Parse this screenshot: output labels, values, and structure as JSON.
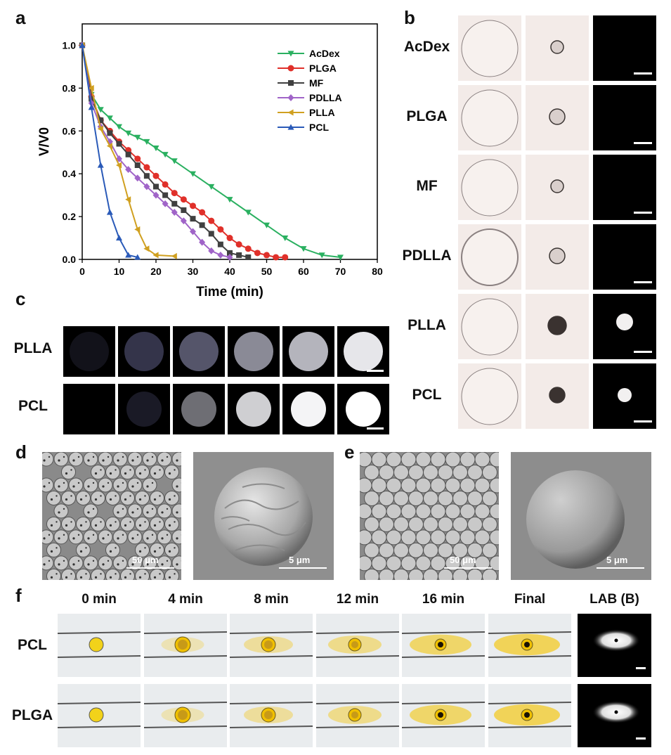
{
  "panel_labels": {
    "a": "a",
    "b": "b",
    "c": "c",
    "d": "d",
    "e": "e",
    "f": "f"
  },
  "chart_data": {
    "type": "line",
    "xlabel": "Time (min)",
    "ylabel": "V/V0",
    "xlim": [
      0,
      80
    ],
    "ylim": [
      0,
      1.1
    ],
    "xticks": [
      "0",
      "10",
      "20",
      "30",
      "40",
      "50",
      "60",
      "70",
      "80"
    ],
    "yticks": [
      "0.0",
      "0.2",
      "0.4",
      "0.6",
      "0.8",
      "1.0"
    ],
    "legend_position": "top-right",
    "series": [
      {
        "name": "AcDex",
        "color": "#2ab060",
        "marker": "triangle-down",
        "x": [
          0,
          2.5,
          5,
          7.5,
          10,
          12.5,
          15,
          17.5,
          20,
          22.5,
          25,
          30,
          35,
          40,
          45,
          50,
          55,
          60,
          65,
          70
        ],
        "y": [
          1.0,
          0.77,
          0.7,
          0.66,
          0.62,
          0.59,
          0.57,
          0.55,
          0.52,
          0.49,
          0.46,
          0.4,
          0.34,
          0.28,
          0.22,
          0.16,
          0.1,
          0.05,
          0.02,
          0.01
        ]
      },
      {
        "name": "PLGA",
        "color": "#e0302a",
        "marker": "circle",
        "x": [
          0,
          2.5,
          5,
          7.5,
          10,
          12.5,
          15,
          17.5,
          20,
          22.5,
          25,
          27.5,
          30,
          32.5,
          35,
          37.5,
          40,
          42.5,
          45,
          47.5,
          50,
          52.5,
          55
        ],
        "y": [
          1.0,
          0.76,
          0.65,
          0.6,
          0.55,
          0.51,
          0.47,
          0.43,
          0.39,
          0.35,
          0.31,
          0.28,
          0.25,
          0.22,
          0.18,
          0.14,
          0.1,
          0.07,
          0.05,
          0.03,
          0.02,
          0.01,
          0.01
        ]
      },
      {
        "name": "MF",
        "color": "#404040",
        "marker": "square",
        "x": [
          0,
          2.5,
          5,
          7.5,
          10,
          12.5,
          15,
          17.5,
          20,
          22.5,
          25,
          27.5,
          30,
          32.5,
          35,
          37.5,
          40,
          42.5,
          45
        ],
        "y": [
          1.0,
          0.75,
          0.65,
          0.59,
          0.54,
          0.49,
          0.44,
          0.39,
          0.34,
          0.3,
          0.26,
          0.23,
          0.19,
          0.16,
          0.12,
          0.07,
          0.03,
          0.02,
          0.01
        ]
      },
      {
        "name": "PDLLA",
        "color": "#a064c8",
        "marker": "diamond",
        "x": [
          0,
          2.5,
          5,
          7.5,
          10,
          12.5,
          15,
          17.5,
          20,
          22.5,
          25,
          27.5,
          30,
          32.5,
          35,
          37.5,
          40
        ],
        "y": [
          1.0,
          0.73,
          0.62,
          0.55,
          0.47,
          0.42,
          0.38,
          0.34,
          0.3,
          0.26,
          0.22,
          0.18,
          0.13,
          0.08,
          0.04,
          0.02,
          0.01
        ]
      },
      {
        "name": "PLLA",
        "color": "#d0a020",
        "marker": "triangle-left",
        "x": [
          0,
          2.5,
          5,
          7.5,
          10,
          12.5,
          15,
          17.5,
          20,
          25
        ],
        "y": [
          1.0,
          0.8,
          0.61,
          0.53,
          0.44,
          0.28,
          0.14,
          0.05,
          0.02,
          0.015
        ]
      },
      {
        "name": "PCL",
        "color": "#2a5ab8",
        "marker": "triangle-up",
        "x": [
          0,
          2.5,
          5,
          7.5,
          10,
          12.5,
          15
        ],
        "y": [
          1.0,
          0.71,
          0.44,
          0.22,
          0.1,
          0.02,
          0.01
        ]
      }
    ]
  },
  "panel_b": {
    "rows": [
      "AcDex",
      "PLGA",
      "MF",
      "PDLLA",
      "PLLA",
      "PCL"
    ]
  },
  "panel_c": {
    "rows": [
      "PLLA",
      "PCL"
    ]
  },
  "panel_d": {
    "scale_left": "50 μm",
    "scale_right": "5 μm"
  },
  "panel_e": {
    "scale_left": "50 μm",
    "scale_right": "5 μm"
  },
  "panel_f": {
    "columns": [
      "0 min",
      "4 min",
      "8 min",
      "12 min",
      "16 min",
      "Final",
      "LAB (B)"
    ],
    "rows": [
      "PCL",
      "PLGA"
    ]
  }
}
